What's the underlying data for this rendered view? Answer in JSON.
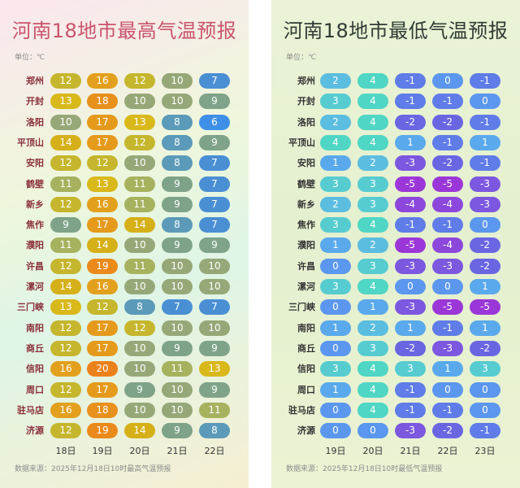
{
  "high": {
    "title": "河南18地市最高气温预报",
    "unit": "单位：℃",
    "days": [
      "18日",
      "19日",
      "20日",
      "21日",
      "22日"
    ],
    "source": "数据来源：2025年12月18日10时最高气温预报",
    "rows": [
      {
        "city": "郑州",
        "values": [
          12,
          16,
          12,
          10,
          7
        ]
      },
      {
        "city": "开封",
        "values": [
          13,
          18,
          10,
          10,
          9
        ]
      },
      {
        "city": "洛阳",
        "values": [
          10,
          17,
          13,
          8,
          6
        ]
      },
      {
        "city": "平顶山",
        "values": [
          14,
          17,
          12,
          8,
          9
        ]
      },
      {
        "city": "安阳",
        "values": [
          12,
          12,
          10,
          8,
          7
        ]
      },
      {
        "city": "鹤壁",
        "values": [
          11,
          13,
          11,
          9,
          7
        ]
      },
      {
        "city": "新乡",
        "values": [
          12,
          16,
          11,
          9,
          7
        ]
      },
      {
        "city": "焦作",
        "values": [
          9,
          17,
          14,
          8,
          7
        ]
      },
      {
        "city": "濮阳",
        "values": [
          11,
          14,
          10,
          9,
          9
        ]
      },
      {
        "city": "许昌",
        "values": [
          12,
          19,
          11,
          10,
          10
        ]
      },
      {
        "city": "漯河",
        "values": [
          14,
          16,
          10,
          10,
          10
        ]
      },
      {
        "city": "三门峡",
        "values": [
          13,
          12,
          8,
          7,
          7
        ]
      },
      {
        "city": "南阳",
        "values": [
          12,
          17,
          12,
          10,
          10
        ]
      },
      {
        "city": "商丘",
        "values": [
          12,
          17,
          10,
          9,
          9
        ]
      },
      {
        "city": "信阳",
        "values": [
          16,
          20,
          10,
          11,
          13
        ]
      },
      {
        "city": "周口",
        "values": [
          12,
          17,
          9,
          10,
          9
        ]
      },
      {
        "city": "驻马店",
        "values": [
          16,
          18,
          10,
          10,
          11
        ]
      },
      {
        "city": "济源",
        "values": [
          12,
          19,
          14,
          9,
          8
        ]
      }
    ]
  },
  "low": {
    "title": "河南18地市最低气温预报",
    "unit": "单位：℃",
    "days": [
      "19日",
      "20日",
      "21日",
      "22日",
      "23日"
    ],
    "source": "数据来源：2025年12月18日10时最低气温预报",
    "rows": [
      {
        "city": "郑州",
        "values": [
          2,
          4,
          -1,
          0,
          -1
        ]
      },
      {
        "city": "开封",
        "values": [
          3,
          4,
          -1,
          -1,
          0
        ]
      },
      {
        "city": "洛阳",
        "values": [
          2,
          4,
          -2,
          -2,
          -1
        ]
      },
      {
        "city": "平顶山",
        "values": [
          4,
          4,
          1,
          -1,
          1
        ]
      },
      {
        "city": "安阳",
        "values": [
          1,
          2,
          -3,
          -2,
          -1
        ]
      },
      {
        "city": "鹤壁",
        "values": [
          3,
          3,
          -5,
          -5,
          -3
        ]
      },
      {
        "city": "新乡",
        "values": [
          2,
          3,
          -4,
          -4,
          -3
        ]
      },
      {
        "city": "焦作",
        "values": [
          3,
          4,
          -1,
          -1,
          0
        ]
      },
      {
        "city": "濮阳",
        "values": [
          1,
          2,
          -5,
          -4,
          -2
        ]
      },
      {
        "city": "许昌",
        "values": [
          0,
          3,
          -3,
          -3,
          -2
        ]
      },
      {
        "city": "漯河",
        "values": [
          3,
          4,
          0,
          0,
          1
        ]
      },
      {
        "city": "三门峡",
        "values": [
          0,
          1,
          -3,
          -5,
          -5
        ]
      },
      {
        "city": "南阳",
        "values": [
          1,
          2,
          1,
          -1,
          1
        ]
      },
      {
        "city": "商丘",
        "values": [
          0,
          3,
          -2,
          -3,
          -2
        ]
      },
      {
        "city": "信阳",
        "values": [
          3,
          4,
          3,
          1,
          3
        ]
      },
      {
        "city": "周口",
        "values": [
          1,
          4,
          -1,
          0,
          0
        ]
      },
      {
        "city": "驻马店",
        "values": [
          0,
          4,
          -1,
          -1,
          0
        ]
      },
      {
        "city": "济源",
        "values": [
          0,
          0,
          -3,
          -2,
          -1
        ]
      }
    ]
  },
  "colors": {
    "high": {
      "6": "#3f8fe6",
      "7": "#4a8fd4",
      "8": "#5b9ab8",
      "9": "#7ea388",
      "10": "#97a878",
      "11": "#a7b25e",
      "12": "#c6b62d",
      "13": "#d9b81a",
      "14": "#d6b019",
      "16": "#e3a01d",
      "17": "#e59a1c",
      "18": "#e8901c",
      "19": "#ea8a1b",
      "20": "#ec801a"
    },
    "low": {
      "4": "#4fd6c4",
      "3": "#56ccd0",
      "2": "#5bbde0",
      "1": "#5aa9ec",
      "0": "#5b97ee",
      "-1": "#5f7ce8",
      "-2": "#6a66e2",
      "-3": "#7c57df",
      "-4": "#8c47dc",
      "-5": "#9b37d8"
    }
  }
}
